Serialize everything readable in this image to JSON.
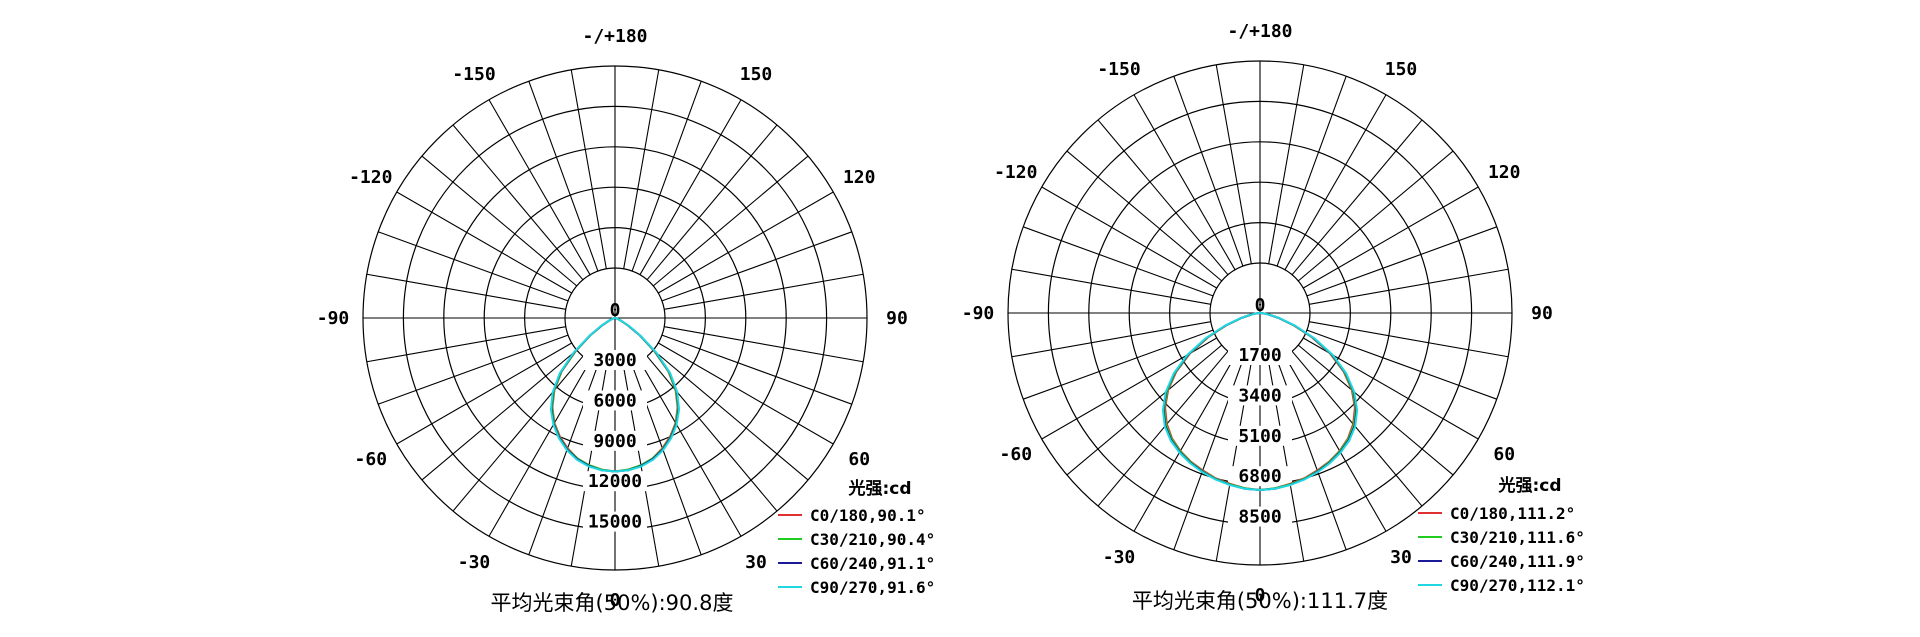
{
  "chart_data": [
    {
      "type": "polar",
      "unit_label": "光强:cd",
      "footer": "平均光束角(50%):90.8度",
      "angle_labels": [
        "-/+180",
        "-150",
        "150",
        "-120",
        "120",
        "-90",
        "90",
        "-60",
        "60",
        "-30",
        "30",
        "0"
      ],
      "center_label": "0",
      "radial_labels": [
        "3000",
        "6000",
        "9000",
        "12000",
        "15000"
      ],
      "rmax": 15000,
      "series": [
        {
          "name": "C0/180,90.1°",
          "color": "#e03030",
          "angles": [
            0,
            5,
            10,
            15,
            20,
            25,
            30,
            35,
            40,
            45,
            50,
            55,
            60,
            65,
            70,
            75,
            80,
            85,
            90
          ],
          "values": [
            11400,
            11300,
            11100,
            10800,
            10300,
            9700,
            9000,
            8100,
            7000,
            5600,
            3800,
            2200,
            1100,
            500,
            250,
            120,
            60,
            30,
            0
          ]
        },
        {
          "name": "C30/210,90.4°",
          "color": "#22cc22",
          "angles": [
            0,
            5,
            10,
            15,
            20,
            25,
            30,
            35,
            40,
            45,
            50,
            55,
            60,
            65,
            70,
            75,
            80,
            85,
            90
          ],
          "values": [
            11400,
            11300,
            11100,
            10800,
            10350,
            9750,
            9050,
            8150,
            7050,
            5650,
            3850,
            2250,
            1150,
            520,
            260,
            125,
            60,
            30,
            0
          ]
        },
        {
          "name": "C60/240,91.1°",
          "color": "#1a1a99",
          "angles": [
            0,
            5,
            10,
            15,
            20,
            25,
            30,
            35,
            40,
            45,
            50,
            55,
            60,
            65,
            70,
            75,
            80,
            85,
            90
          ],
          "values": [
            11400,
            11350,
            11150,
            10850,
            10400,
            9800,
            9100,
            8250,
            7150,
            5750,
            3950,
            2300,
            1200,
            540,
            270,
            130,
            65,
            30,
            0
          ]
        },
        {
          "name": "C90/270,91.6°",
          "color": "#20d8e0",
          "angles": [
            0,
            5,
            10,
            15,
            20,
            25,
            30,
            35,
            40,
            45,
            50,
            55,
            60,
            65,
            70,
            75,
            80,
            85,
            90
          ],
          "values": [
            11400,
            11350,
            11200,
            10900,
            10450,
            9850,
            9150,
            8300,
            7200,
            5800,
            4000,
            2350,
            1250,
            560,
            280,
            135,
            70,
            35,
            0
          ]
        }
      ]
    },
    {
      "type": "polar",
      "unit_label": "光强:cd",
      "footer": "平均光束角(50%):111.7度",
      "angle_labels": [
        "-/+180",
        "-150",
        "150",
        "-120",
        "120",
        "-90",
        "90",
        "-60",
        "60",
        "-30",
        "30",
        "0"
      ],
      "center_label": "0",
      "radial_labels": [
        "1700",
        "3400",
        "5100",
        "6800",
        "8500"
      ],
      "rmax": 8500,
      "series": [
        {
          "name": "C0/180,111.2°",
          "color": "#e03030",
          "angles": [
            0,
            5,
            10,
            15,
            20,
            25,
            30,
            35,
            40,
            45,
            50,
            55,
            60,
            65,
            70,
            75,
            80,
            85,
            90
          ],
          "values": [
            7450,
            7400,
            7300,
            7200,
            7050,
            6900,
            6700,
            6450,
            6100,
            5650,
            5050,
            4300,
            3400,
            2400,
            1500,
            800,
            350,
            120,
            0
          ]
        },
        {
          "name": "C30/210,111.6°",
          "color": "#22cc22",
          "angles": [
            0,
            5,
            10,
            15,
            20,
            25,
            30,
            35,
            40,
            45,
            50,
            55,
            60,
            65,
            70,
            75,
            80,
            85,
            90
          ],
          "values": [
            7450,
            7400,
            7320,
            7220,
            7080,
            6920,
            6720,
            6480,
            6150,
            5700,
            5100,
            4350,
            3450,
            2450,
            1530,
            820,
            360,
            125,
            0
          ]
        },
        {
          "name": "C60/240,111.9°",
          "color": "#1a1a99",
          "angles": [
            0,
            5,
            10,
            15,
            20,
            25,
            30,
            35,
            40,
            45,
            50,
            55,
            60,
            65,
            70,
            75,
            80,
            85,
            90
          ],
          "values": [
            7450,
            7420,
            7340,
            7240,
            7100,
            6950,
            6760,
            6520,
            6200,
            5750,
            5150,
            4400,
            3500,
            2500,
            1560,
            840,
            370,
            130,
            0
          ]
        },
        {
          "name": "C90/270,112.1°",
          "color": "#20d8e0",
          "angles": [
            0,
            5,
            10,
            15,
            20,
            25,
            30,
            35,
            40,
            45,
            50,
            55,
            60,
            65,
            70,
            75,
            80,
            85,
            90
          ],
          "values": [
            7450,
            7420,
            7350,
            7250,
            7120,
            6970,
            6780,
            6550,
            6230,
            5780,
            5180,
            4430,
            3530,
            2520,
            1580,
            850,
            380,
            135,
            0
          ]
        }
      ]
    }
  ]
}
